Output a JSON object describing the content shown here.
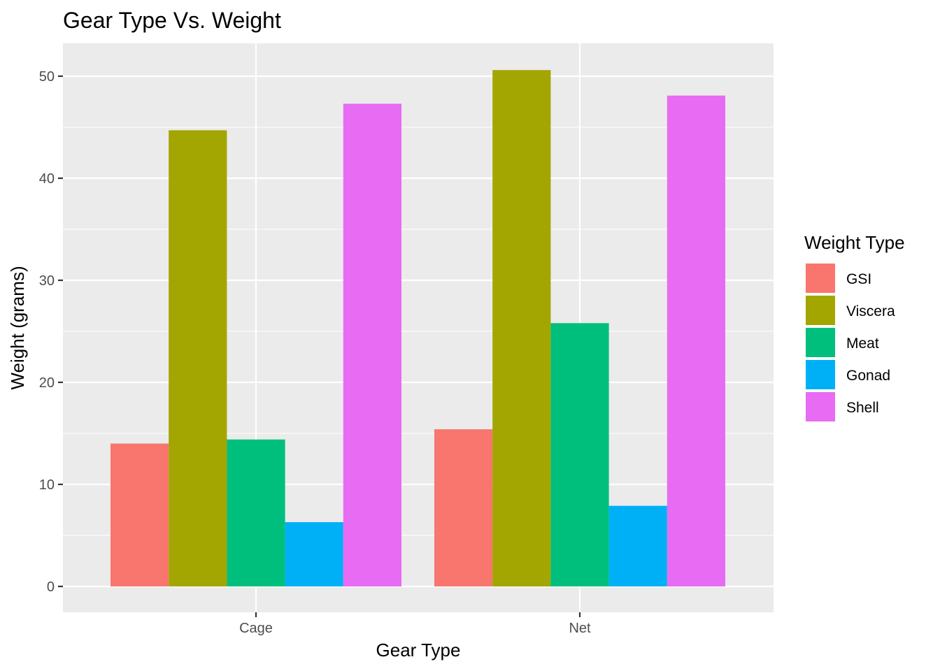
{
  "chart_data": {
    "type": "bar",
    "title": "Gear Type Vs. Weight",
    "xlabel": "Gear Type",
    "ylabel": "Weight (grams)",
    "categories": [
      "Cage",
      "Net"
    ],
    "ylim": [
      0,
      50
    ],
    "yticks": [
      "0",
      "10",
      "20",
      "30",
      "40",
      "50"
    ],
    "grid": true,
    "legend": {
      "title": "Weight Type",
      "position": "right"
    },
    "series": [
      {
        "name": "GSI",
        "values": [
          14.0,
          15.4
        ],
        "color": "#F8766D"
      },
      {
        "name": "Viscera",
        "values": [
          44.7,
          50.6
        ],
        "color": "#A3A500"
      },
      {
        "name": "Meat",
        "values": [
          14.4,
          25.8
        ],
        "color": "#00BF7D"
      },
      {
        "name": "Gonad",
        "values": [
          6.3,
          7.9
        ],
        "color": "#00B0F6"
      },
      {
        "name": "Shell",
        "values": [
          47.3,
          48.1
        ],
        "color": "#E76BF3"
      }
    ],
    "panel_background": "#EBEBEB",
    "grid_color": "#FFFFFF"
  }
}
